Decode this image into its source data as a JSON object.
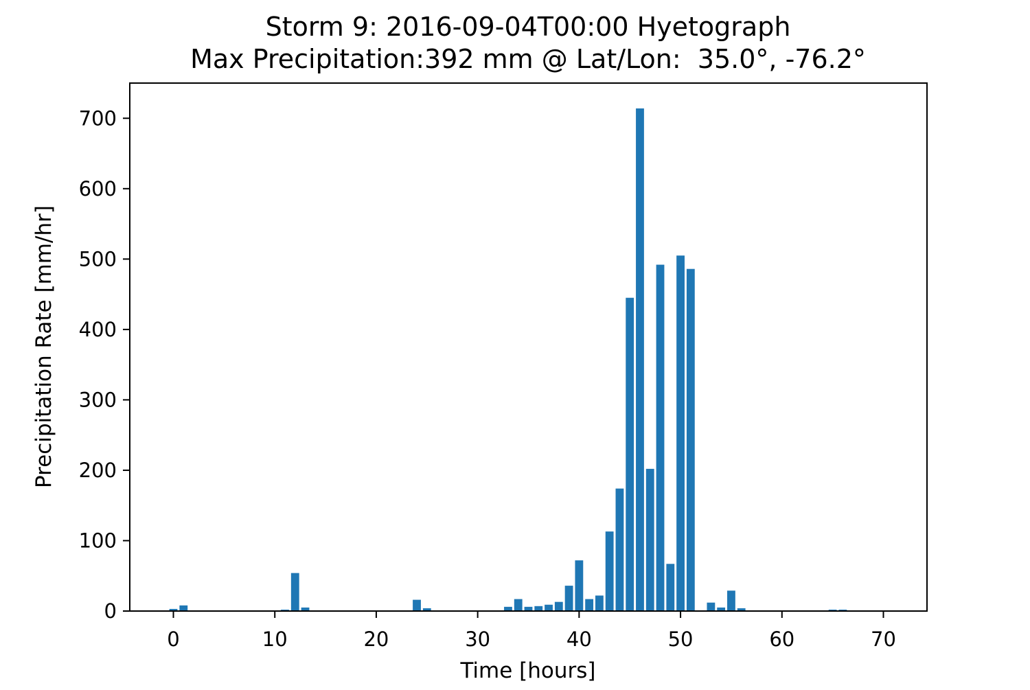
{
  "chart_data": {
    "type": "bar",
    "title": [
      "Storm 9: 2016-09-04T00:00 Hyetograph",
      "Max Precipitation:392 mm @ Lat/Lon:  35.0°, -76.2°"
    ],
    "xlabel": "Time [hours]",
    "ylabel": "Precipitation Rate [mm/hr]",
    "xlim": [
      -4.3,
      74.3
    ],
    "ylim": [
      0,
      750
    ],
    "xticks": [
      0,
      10,
      20,
      30,
      40,
      50,
      60,
      70
    ],
    "yticks": [
      0,
      100,
      200,
      300,
      400,
      500,
      600,
      700
    ],
    "grid": false,
    "legend": "none",
    "bar_color": "#1f77b4",
    "bar_width": 0.8,
    "x": [
      0,
      1,
      11,
      12,
      13,
      24,
      25,
      33,
      34,
      35,
      36,
      37,
      38,
      39,
      40,
      41,
      42,
      43,
      44,
      45,
      46,
      47,
      48,
      49,
      50,
      51,
      53,
      54,
      55,
      56,
      65,
      66
    ],
    "values": [
      3,
      8,
      2,
      54,
      5,
      16,
      4,
      6,
      17,
      6,
      7,
      9,
      13,
      36,
      72,
      17,
      22,
      113,
      174,
      445,
      714,
      202,
      492,
      67,
      505,
      486,
      12,
      5,
      29,
      4,
      2,
      2
    ]
  }
}
